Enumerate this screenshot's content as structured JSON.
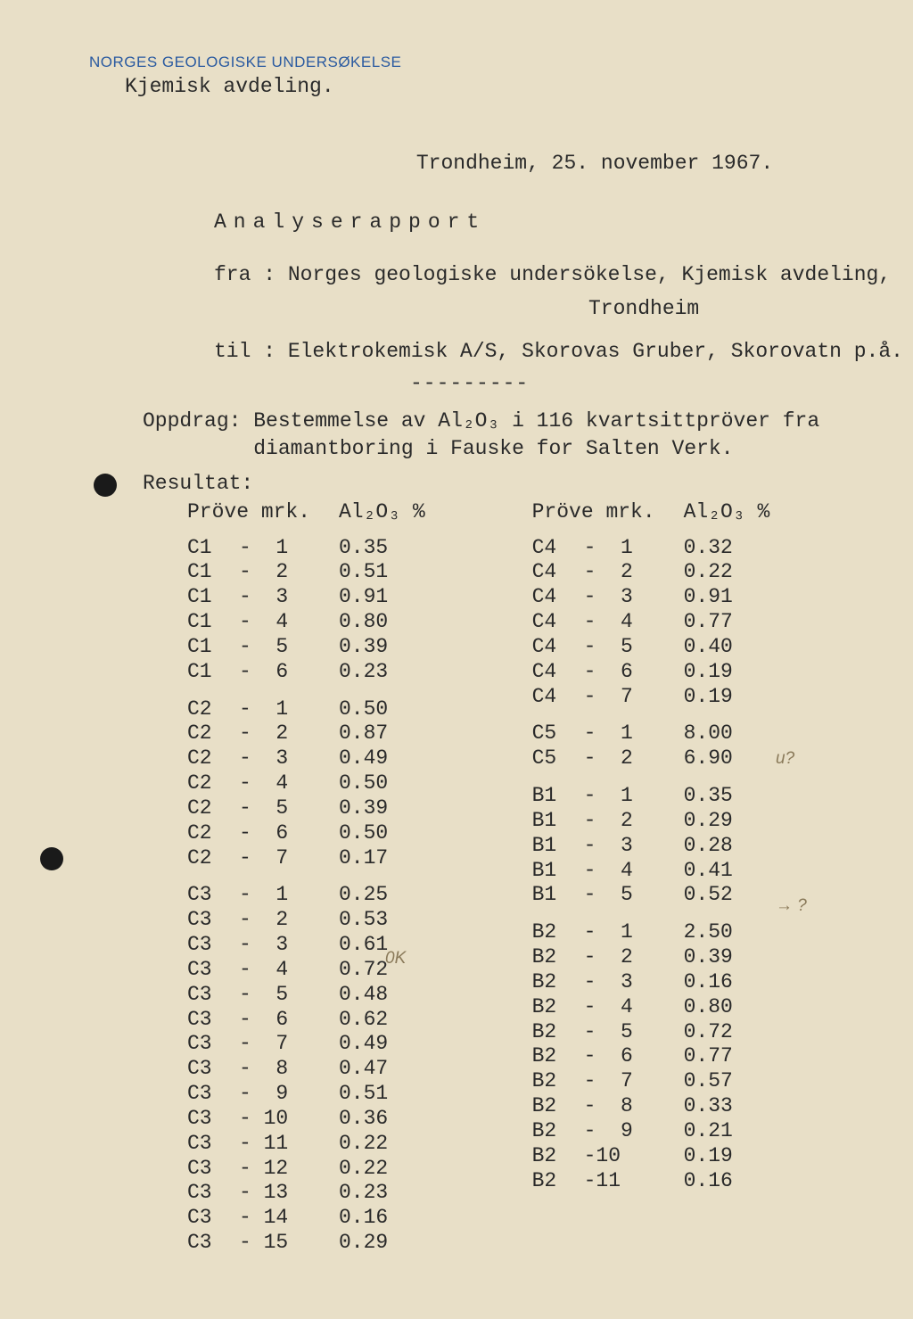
{
  "header": {
    "org": "NORGES GEOLOGISKE UNDERSØKELSE",
    "dept": "Kjemisk avdeling.",
    "date": "Trondheim, 25. november 1967."
  },
  "title": "Analyserapport",
  "meta": {
    "fra_label": "fra :",
    "fra_value1": "Norges geologiske undersökelse, Kjemisk avdeling,",
    "fra_value2": "Trondheim",
    "til_label": "til :",
    "til_value": "Elektrokemisk A/S, Skorovas Gruber, Skorovatn p.å.",
    "dash": "---------"
  },
  "oppdrag": {
    "label": "Oppdrag:",
    "line1": "Bestemmelse av Al₂O₃ i 116 kvartsittpröver fra",
    "line2": "diamantboring i Fauske for Salten Verk."
  },
  "resultat_label": "Resultat:",
  "col_head": {
    "c1": "Pröve mrk.",
    "c2": "Al₂O₃ %"
  },
  "left_groups": [
    {
      "rows": [
        {
          "m": "C1",
          "n": "1",
          "v": "0.35"
        },
        {
          "m": "C1",
          "n": "2",
          "v": "0.51"
        },
        {
          "m": "C1",
          "n": "3",
          "v": "0.91"
        },
        {
          "m": "C1",
          "n": "4",
          "v": "0.80"
        },
        {
          "m": "C1",
          "n": "5",
          "v": "0.39"
        },
        {
          "m": "C1",
          "n": "6",
          "v": "0.23"
        }
      ]
    },
    {
      "rows": [
        {
          "m": "C2",
          "n": "1",
          "v": "0.50"
        },
        {
          "m": "C2",
          "n": "2",
          "v": "0.87"
        },
        {
          "m": "C2",
          "n": "3",
          "v": "0.49"
        },
        {
          "m": "C2",
          "n": "4",
          "v": "0.50"
        },
        {
          "m": "C2",
          "n": "5",
          "v": "0.39"
        },
        {
          "m": "C2",
          "n": "6",
          "v": "0.50"
        },
        {
          "m": "C2",
          "n": "7",
          "v": "0.17"
        }
      ]
    },
    {
      "rows": [
        {
          "m": "C3",
          "n": "1",
          "v": "0.25"
        },
        {
          "m": "C3",
          "n": "2",
          "v": "0.53"
        },
        {
          "m": "C3",
          "n": "3",
          "v": "0.61"
        },
        {
          "m": "C3",
          "n": "4",
          "v": "0.72"
        },
        {
          "m": "C3",
          "n": "5",
          "v": "0.48"
        },
        {
          "m": "C3",
          "n": "6",
          "v": "0.62"
        },
        {
          "m": "C3",
          "n": "7",
          "v": "0.49"
        },
        {
          "m": "C3",
          "n": "8",
          "v": "0.47"
        },
        {
          "m": "C3",
          "n": "9",
          "v": "0.51"
        },
        {
          "m": "C3",
          "n": "10",
          "v": "0.36"
        },
        {
          "m": "C3",
          "n": "11",
          "v": "0.22"
        },
        {
          "m": "C3",
          "n": "12",
          "v": "0.22"
        },
        {
          "m": "C3",
          "n": "13",
          "v": "0.23"
        },
        {
          "m": "C3",
          "n": "14",
          "v": "0.16"
        },
        {
          "m": "C3",
          "n": "15",
          "v": "0.29"
        }
      ]
    }
  ],
  "right_groups": [
    {
      "rows": [
        {
          "m": "C4",
          "n": "1",
          "v": "0.32"
        },
        {
          "m": "C4",
          "n": "2",
          "v": "0.22"
        },
        {
          "m": "C4",
          "n": "3",
          "v": "0.91"
        },
        {
          "m": "C4",
          "n": "4",
          "v": "0.77"
        },
        {
          "m": "C4",
          "n": "5",
          "v": "0.40"
        },
        {
          "m": "C4",
          "n": "6",
          "v": "0.19"
        },
        {
          "m": "C4",
          "n": "7",
          "v": "0.19"
        }
      ]
    },
    {
      "rows": [
        {
          "m": "C5",
          "n": "1",
          "v": "8.00"
        },
        {
          "m": "C5",
          "n": "2",
          "v": "6.90"
        }
      ]
    },
    {
      "rows": [
        {
          "m": "B1",
          "n": "1",
          "v": "0.35"
        },
        {
          "m": "B1",
          "n": "2",
          "v": "0.29"
        },
        {
          "m": "B1",
          "n": "3",
          "v": "0.28"
        },
        {
          "m": "B1",
          "n": "4",
          "v": "0.41"
        },
        {
          "m": "B1",
          "n": "5",
          "v": "0.52"
        }
      ]
    },
    {
      "rows": [
        {
          "m": "B2",
          "n": "1",
          "v": "2.50"
        },
        {
          "m": "B2",
          "n": "2",
          "v": "0.39"
        },
        {
          "m": "B2",
          "n": "3",
          "v": "0.16"
        },
        {
          "m": "B2",
          "n": "4",
          "v": "0.80"
        },
        {
          "m": "B2",
          "n": "5",
          "v": "0.72"
        },
        {
          "m": "B2",
          "n": "6",
          "v": "0.77"
        },
        {
          "m": "B2",
          "n": "7",
          "v": "0.57"
        },
        {
          "m": "B2",
          "n": "8",
          "v": "0.33"
        },
        {
          "m": "B2",
          "n": "9",
          "v": "0.21"
        },
        {
          "m": "B2",
          "n": "10",
          "v": "0.19",
          "nodash": true
        },
        {
          "m": "B2",
          "n": "11",
          "v": "0.16",
          "nodash": true
        }
      ]
    }
  ],
  "annotations": {
    "ok": "0K",
    "u": "u?",
    "arrow": "→ ?"
  }
}
